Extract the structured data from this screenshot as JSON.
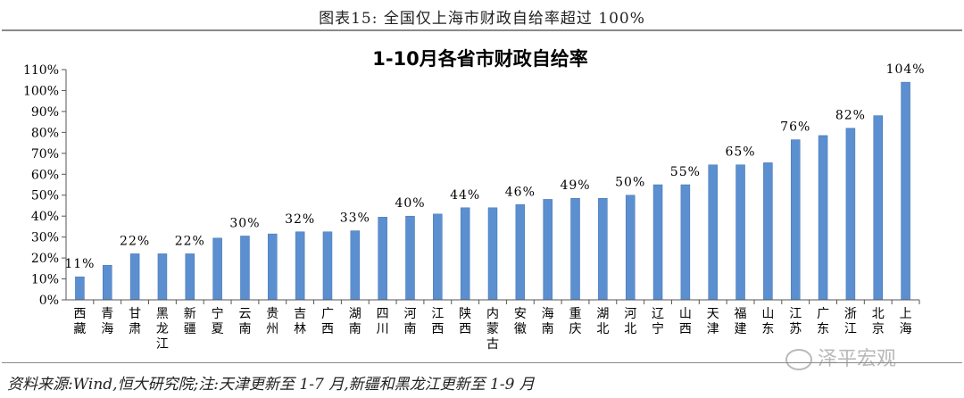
{
  "caption": "图表15:    全国仅上海市财政自给率超过 100%",
  "source": "资料来源:Wind,恒大研究院;注:天津更新至 1-7 月,新疆和黑龙江更新至 1-9 月",
  "watermark": "泽平宏观",
  "colors": {
    "bar": "#5b8fd0",
    "bar_edge": "#3f72b3",
    "axis": "#555555"
  },
  "chart_data": {
    "type": "bar",
    "title": "1-10月各省市财政自给率",
    "categories": [
      "西藏",
      "青海",
      "甘肃",
      "黑龙江",
      "新疆",
      "宁夏",
      "云南",
      "贵州",
      "吉林",
      "广西",
      "湖南",
      "四川",
      "河南",
      "江西",
      "陕西",
      "内蒙古",
      "安徽",
      "海南",
      "重庆",
      "湖北",
      "河北",
      "辽宁",
      "山西",
      "天津",
      "福建",
      "山东",
      "江苏",
      "广东",
      "浙江",
      "北京",
      "上海"
    ],
    "values": [
      11,
      16.5,
      22,
      22,
      22,
      29.5,
      30.5,
      31.5,
      32.5,
      32.5,
      33,
      39.5,
      40,
      41,
      44,
      44,
      45.5,
      48,
      48.5,
      48.5,
      50,
      55,
      55,
      64.5,
      64.5,
      65.5,
      76.5,
      78.5,
      82,
      88,
      104
    ],
    "data_labels": [
      {
        "index": 0,
        "text": "11%"
      },
      {
        "index": 2,
        "text": "22%"
      },
      {
        "index": 4,
        "text": "22%"
      },
      {
        "index": 6,
        "text": "30%"
      },
      {
        "index": 8,
        "text": "32%"
      },
      {
        "index": 10,
        "text": "33%"
      },
      {
        "index": 12,
        "text": "40%"
      },
      {
        "index": 14,
        "text": "44%"
      },
      {
        "index": 16,
        "text": "46%"
      },
      {
        "index": 18,
        "text": "49%"
      },
      {
        "index": 20,
        "text": "50%"
      },
      {
        "index": 22,
        "text": "55%"
      },
      {
        "index": 24,
        "text": "65%"
      },
      {
        "index": 26,
        "text": "76%"
      },
      {
        "index": 28,
        "text": "82%"
      },
      {
        "index": 30,
        "text": "104%"
      }
    ],
    "ylim": [
      0,
      110
    ],
    "yticks": [
      "0%",
      "10%",
      "20%",
      "30%",
      "40%",
      "50%",
      "60%",
      "70%",
      "80%",
      "90%",
      "100%",
      "110%"
    ],
    "grid": false,
    "legend": "none"
  }
}
